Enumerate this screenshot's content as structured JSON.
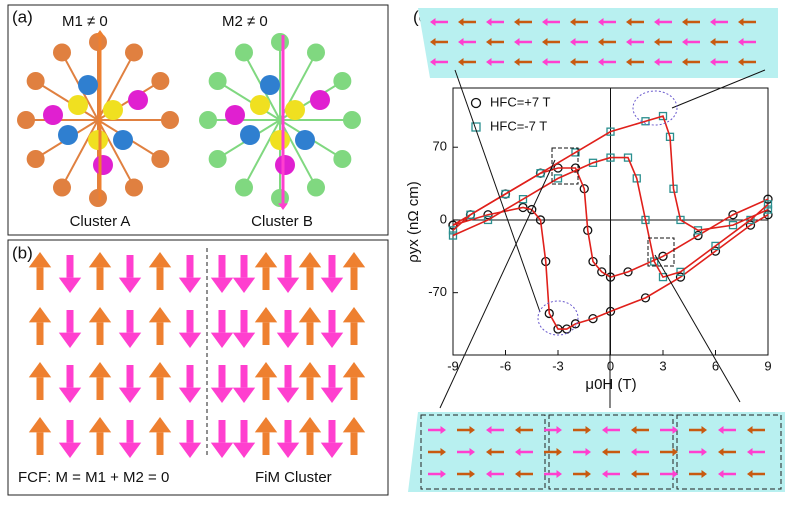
{
  "panel_a": {
    "label": "(a)",
    "m1": "M1 ≠ 0",
    "m2": "M2 ≠ 0",
    "cluster_a": "Cluster A",
    "cluster_b": "Cluster B"
  },
  "panel_b": {
    "label": "(b)",
    "fcf": "FCF: M = M1 + M2 = 0",
    "fim": "FiM Cluster"
  },
  "panel_c": {
    "label": "(c)"
  },
  "chart_data": {
    "type": "scatter",
    "x_label": "μ0H (T)",
    "y_label": "ρyx (nΩ cm)",
    "xlim": [
      -9,
      9
    ],
    "ylim": [
      -130,
      127
    ],
    "xticks": [
      -9,
      -6,
      -3,
      0,
      3,
      6,
      9
    ],
    "yticks": [
      -70,
      0,
      70
    ],
    "fit_color": "#e0201b",
    "series": [
      {
        "name": "HFC=+7 T",
        "color": "#111111",
        "marker": "circle",
        "x": [
          -9,
          -7,
          -5,
          -4.5,
          -4,
          -3.7,
          -3.5,
          -3,
          -2.5,
          -2,
          -1,
          0,
          2,
          4,
          6,
          8,
          9,
          null,
          9,
          7,
          5,
          3,
          1,
          0,
          -0.5,
          -1,
          -1.3,
          -1.5,
          -2,
          -3,
          -4,
          -6,
          -8,
          -9
        ],
        "values": [
          -5,
          5,
          12,
          10,
          0,
          -40,
          -90,
          -105,
          -105,
          -100,
          -95,
          -88,
          -75,
          -55,
          -30,
          -5,
          5,
          null,
          20,
          5,
          -15,
          -35,
          -50,
          -55,
          -50,
          -40,
          -10,
          30,
          50,
          50,
          45,
          25,
          5,
          -5
        ]
      },
      {
        "name": "HFC=-7 T",
        "color": "#2a8f8f",
        "marker": "square",
        "x": [
          -9,
          -7,
          -5,
          -3,
          -1,
          0,
          1,
          1.5,
          2,
          2.5,
          3,
          4,
          6,
          8,
          9,
          null,
          9,
          7,
          5,
          4,
          3.6,
          3.4,
          3,
          2,
          0,
          -2,
          -4,
          -6,
          -8,
          -9
        ],
        "values": [
          -15,
          0,
          20,
          40,
          55,
          60,
          60,
          40,
          0,
          -40,
          -55,
          -50,
          -25,
          0,
          15,
          null,
          10,
          -5,
          -10,
          0,
          30,
          80,
          100,
          95,
          85,
          65,
          45,
          25,
          5,
          -10
        ]
      }
    ]
  }
}
